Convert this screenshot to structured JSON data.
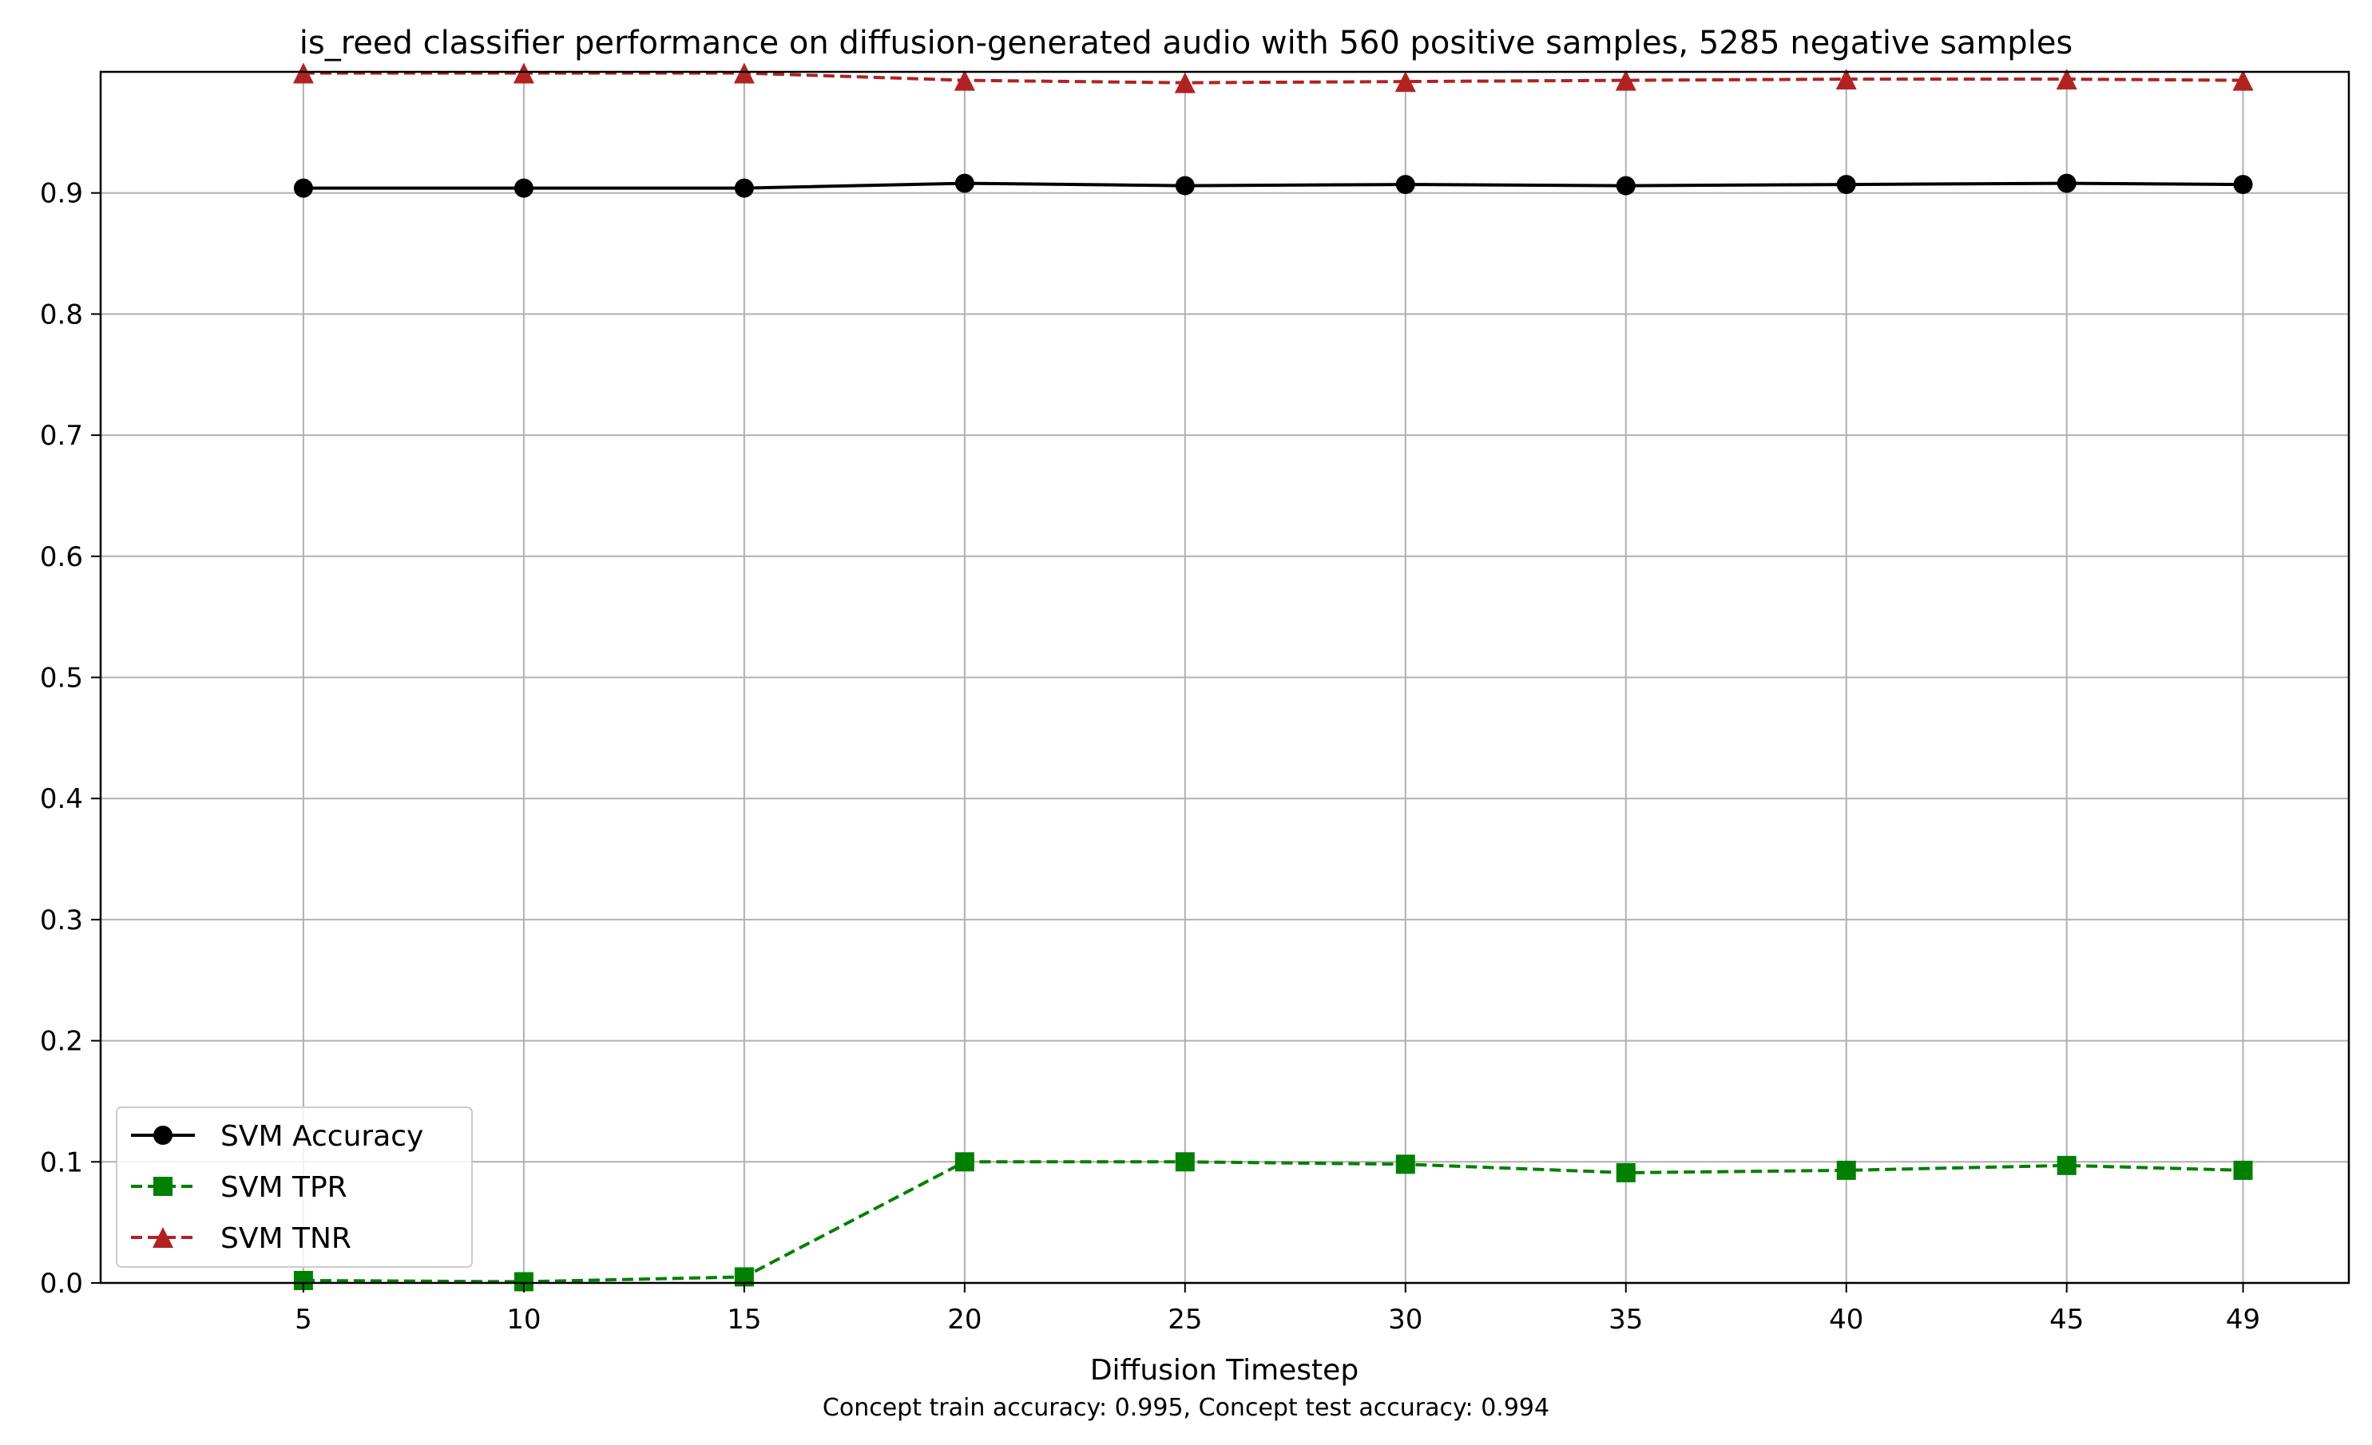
{
  "chart_data": {
    "type": "line",
    "title": "is_reed classifier performance on diffusion-generated audio with 560 positive samples, 5285 negative samples",
    "xlabel": "Diffusion Timestep",
    "ylabel": "",
    "caption": "Concept train accuracy: 0.995, Concept test accuracy: 0.994",
    "x": [
      5,
      10,
      15,
      20,
      25,
      30,
      35,
      40,
      45,
      49
    ],
    "x_ticks": [
      "5",
      "10",
      "15",
      "20",
      "25",
      "30",
      "35",
      "40",
      "45",
      "49"
    ],
    "y_ticks": [
      "0.0",
      "0.1",
      "0.2",
      "0.3",
      "0.4",
      "0.5",
      "0.6",
      "0.7",
      "0.8",
      "0.9"
    ],
    "ylim": [
      0,
      1.0
    ],
    "grid": true,
    "legend_position": "lower-left",
    "series": [
      {
        "name": "SVM Accuracy",
        "color": "#000000",
        "marker": "circle",
        "line_style": "solid",
        "values": [
          0.904,
          0.904,
          0.904,
          0.908,
          0.906,
          0.907,
          0.906,
          0.907,
          0.908,
          0.907
        ]
      },
      {
        "name": "SVM TPR",
        "color": "#008000",
        "marker": "square",
        "line_style": "dashed",
        "values": [
          0.002,
          0.001,
          0.005,
          0.1,
          0.1,
          0.098,
          0.091,
          0.093,
          0.097,
          0.093
        ]
      },
      {
        "name": "SVM TNR",
        "color": "#b22222",
        "marker": "triangle",
        "line_style": "dashed",
        "values": [
          0.999,
          0.999,
          0.999,
          0.993,
          0.991,
          0.992,
          0.993,
          0.994,
          0.994,
          0.993
        ]
      }
    ]
  }
}
